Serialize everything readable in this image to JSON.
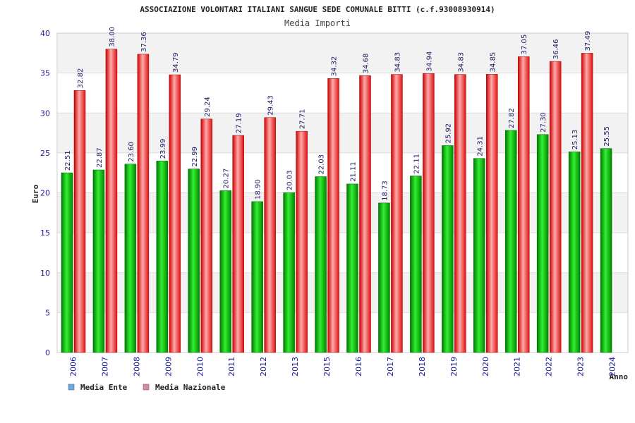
{
  "chart_data": {
    "type": "bar",
    "title": "ASSOCIAZIONE VOLONTARI ITALIANI SANGUE SEDE COMUNALE BITTI (c.f.93008930914)",
    "subtitle": "Media Importi",
    "xlabel": "Anno",
    "ylabel": "Euro",
    "ylim": [
      0,
      40
    ],
    "yticks": [
      0,
      5,
      10,
      15,
      20,
      25,
      30,
      35,
      40
    ],
    "grid": true,
    "legend_position": "bottom-left",
    "categories": [
      "2006",
      "2007",
      "2008",
      "2009",
      "2010",
      "2011",
      "2012",
      "2013",
      "2015",
      "2016",
      "2017",
      "2018",
      "2019",
      "2020",
      "2021",
      "2022",
      "2023",
      "2024"
    ],
    "series": [
      {
        "name": "Media Ente",
        "color": "#00cc00",
        "legend_color": "#66aaee",
        "values": [
          22.51,
          22.87,
          23.6,
          23.99,
          22.99,
          20.27,
          18.9,
          20.03,
          22.03,
          21.11,
          18.73,
          22.11,
          25.92,
          24.31,
          27.82,
          27.3,
          25.13,
          25.55
        ],
        "labels": [
          "22.51",
          "22.87",
          "23.60",
          "23.99",
          "22.99",
          "20.27",
          "18.90",
          "20.03",
          "22.03",
          "21.11",
          "18.73",
          "22.11",
          "25.92",
          "24.31",
          "27.82",
          "27.30",
          "25.13",
          "25.55"
        ]
      },
      {
        "name": "Media Nazionale",
        "color": "#ee2222",
        "legend_color": "#dd88aa",
        "values": [
          32.82,
          38.0,
          37.36,
          34.79,
          29.24,
          27.19,
          29.43,
          27.71,
          34.32,
          34.68,
          34.83,
          34.94,
          34.83,
          34.85,
          37.05,
          36.46,
          37.49,
          null
        ],
        "labels": [
          "32.82",
          "38.00",
          "37.36",
          "34.79",
          "29.24",
          "27.19",
          "29.43",
          "27.71",
          "34.32",
          "34.68",
          "34.83",
          "34.94",
          "34.83",
          "34.85",
          "37.05",
          "36.46",
          "37.49",
          ""
        ]
      }
    ]
  }
}
